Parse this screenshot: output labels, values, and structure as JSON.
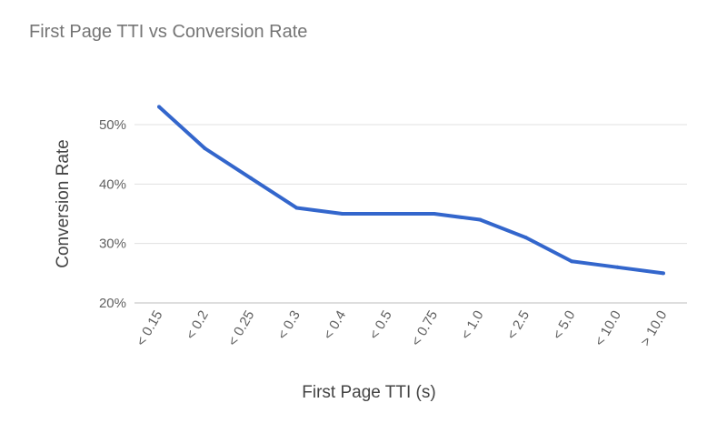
{
  "chart_data": {
    "type": "line",
    "title": "First Page TTI vs Conversion Rate",
    "xlabel": "First Page TTI (s)",
    "ylabel": "Conversion Rate",
    "categories": [
      "< 0.15",
      "< 0.2",
      "< 0.25",
      "< 0.3",
      "< 0.4",
      "< 0.5",
      "< 0.75",
      "< 1.0",
      "< 2.5",
      "< 5.0",
      "< 10.0",
      "> 10.0"
    ],
    "series": [
      {
        "values": [
          53,
          46,
          41,
          36,
          35,
          35,
          35,
          34,
          31,
          27,
          26,
          25
        ]
      }
    ],
    "y_ticks": [
      20,
      30,
      40,
      50
    ],
    "y_tick_labels": [
      "20%",
      "30%",
      "40%",
      "50%"
    ],
    "ylim": [
      20,
      55
    ],
    "grid": true,
    "legend": "none",
    "colors": {
      "line": "#3366cc",
      "grid": "#e0e0e0",
      "baseline": "#bdbdbd"
    }
  }
}
